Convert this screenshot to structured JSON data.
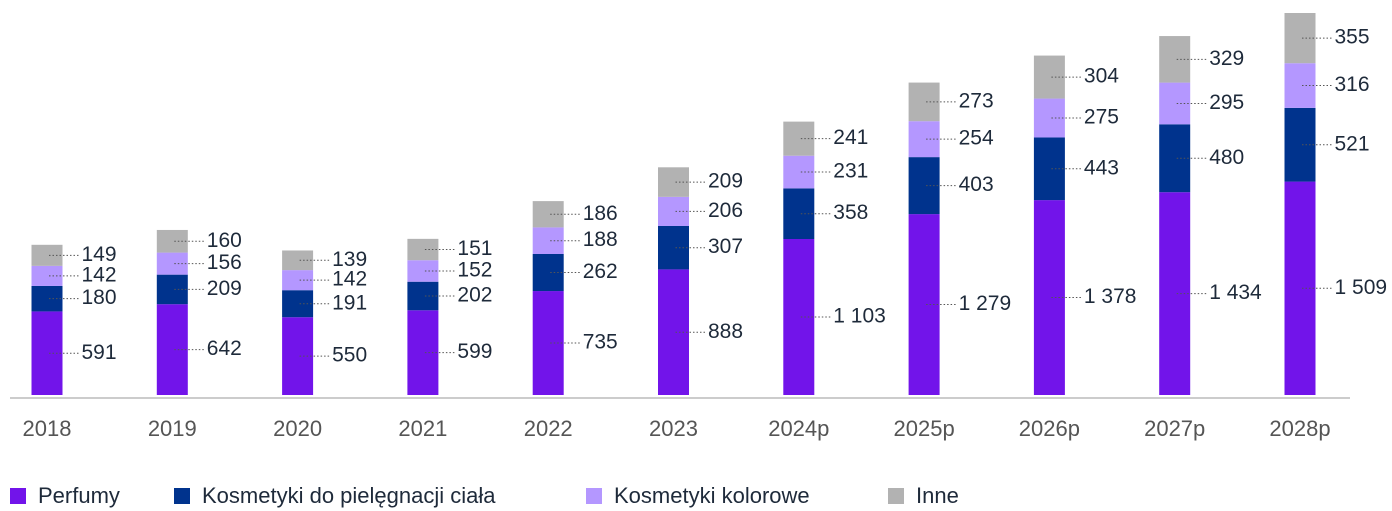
{
  "chart_data": {
    "type": "bar",
    "stacked": true,
    "categories": [
      "2018",
      "2019",
      "2020",
      "2021",
      "2022",
      "2023",
      "2024p",
      "2025p",
      "2026p",
      "2027p",
      "2028p"
    ],
    "series": [
      {
        "name": "Perfumy",
        "color": "#7214ea",
        "values": [
          591,
          642,
          550,
          599,
          735,
          888,
          1103,
          1279,
          1378,
          1434,
          1509
        ],
        "value_labels": [
          "591",
          "642",
          "550",
          "599",
          "735",
          "888",
          "1 103",
          "1 279",
          "1 378",
          "1 434",
          "1 509"
        ]
      },
      {
        "name": "Kosmetyki do pielęgnacji ciała",
        "color": "#00338d",
        "values": [
          180,
          209,
          191,
          202,
          262,
          307,
          358,
          403,
          443,
          480,
          521
        ]
      },
      {
        "name": "Kosmetyki kolorowe",
        "color": "#b497ff",
        "values": [
          142,
          156,
          142,
          152,
          188,
          206,
          231,
          254,
          275,
          295,
          316
        ]
      },
      {
        "name": "Inne",
        "color": "#b2b2b2",
        "values": [
          149,
          160,
          139,
          151,
          186,
          209,
          241,
          273,
          304,
          329,
          355
        ]
      }
    ],
    "legend": "bottom-left"
  }
}
